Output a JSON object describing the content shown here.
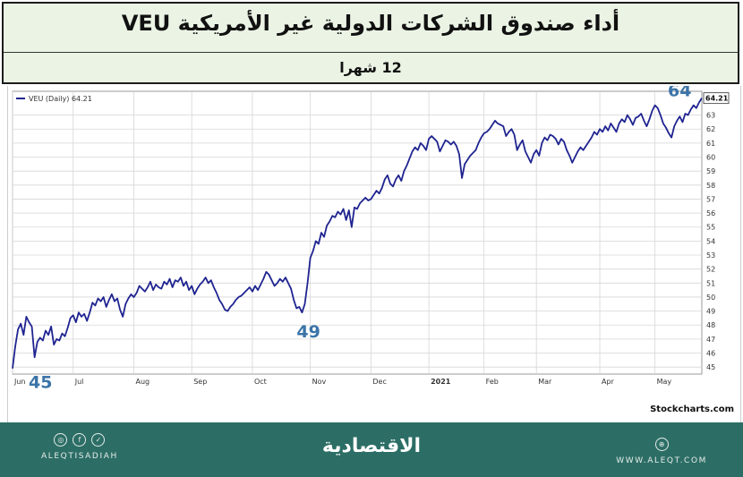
{
  "header": {
    "title": "أداء صندوق الشركات الدولية غير الأمريكية  VEU",
    "subtitle": "12 شهرا"
  },
  "chart_data": {
    "type": "line",
    "legend": "VEU (Daily) 64.21",
    "last_value_label": "64.21",
    "series": [
      {
        "values": [
          44.9,
          46.5,
          47.7,
          48.1,
          47.3,
          48.6,
          48.2,
          47.9,
          45.7,
          46.8,
          47.1,
          46.9,
          47.6,
          47.3,
          47.9,
          46.6,
          47.0,
          46.9,
          47.4,
          47.2,
          47.8,
          48.5,
          48.7,
          48.2,
          48.9,
          48.6,
          48.8,
          48.3,
          48.9,
          49.6,
          49.4,
          49.9,
          49.7,
          50.0,
          49.3,
          49.8,
          50.2,
          49.7,
          49.9,
          49.1,
          48.6,
          49.5,
          49.9,
          50.2,
          50.0,
          50.3,
          50.8,
          50.6,
          50.4,
          50.7,
          51.1,
          50.5,
          50.9,
          50.7,
          50.6,
          51.1,
          50.9,
          51.3,
          50.7,
          51.2,
          51.1,
          51.4,
          50.8,
          51.1,
          50.5,
          50.8,
          50.2,
          50.6,
          50.9,
          51.1,
          51.4,
          51.0,
          51.2,
          50.7,
          50.3,
          49.8,
          49.5,
          49.1,
          49.0,
          49.3,
          49.5,
          49.8,
          50.0,
          50.1,
          50.3,
          50.5,
          50.7,
          50.4,
          50.8,
          50.5,
          50.9,
          51.3,
          51.8,
          51.6,
          51.2,
          50.8,
          51.0,
          51.3,
          51.1,
          51.4,
          51.0,
          50.6,
          49.8,
          49.2,
          49.3,
          48.9,
          49.5,
          51.0,
          52.8,
          53.3,
          54.0,
          53.8,
          54.6,
          54.3,
          55.1,
          55.4,
          55.8,
          55.7,
          56.1,
          55.9,
          56.3,
          55.5,
          56.2,
          55.0,
          56.4,
          56.3,
          56.7,
          56.9,
          57.1,
          56.9,
          57.0,
          57.3,
          57.6,
          57.4,
          57.8,
          58.4,
          58.7,
          58.1,
          57.9,
          58.4,
          58.7,
          58.3,
          59.0,
          59.4,
          59.9,
          60.4,
          60.7,
          60.5,
          61.0,
          60.8,
          60.5,
          61.3,
          61.5,
          61.3,
          61.1,
          60.4,
          60.8,
          61.2,
          61.1,
          60.9,
          61.1,
          60.8,
          60.2,
          58.5,
          59.5,
          59.8,
          60.1,
          60.3,
          60.5,
          61.0,
          61.4,
          61.7,
          61.8,
          62.0,
          62.3,
          62.6,
          62.4,
          62.3,
          62.2,
          61.5,
          61.8,
          62.0,
          61.6,
          60.5,
          60.9,
          61.2,
          60.4,
          60.0,
          59.6,
          60.2,
          60.5,
          60.1,
          61.0,
          61.4,
          61.2,
          61.6,
          61.5,
          61.3,
          60.9,
          61.3,
          61.1,
          60.5,
          60.1,
          59.6,
          60.0,
          60.4,
          60.7,
          60.5,
          60.8,
          61.1,
          61.4,
          61.8,
          61.6,
          62.0,
          61.8,
          62.2,
          61.9,
          62.4,
          62.1,
          61.8,
          62.4,
          62.7,
          62.5,
          63.0,
          62.7,
          62.3,
          62.8,
          62.9,
          63.1,
          62.6,
          62.2,
          62.7,
          63.3,
          63.7,
          63.5,
          63.0,
          62.4,
          62.1,
          61.7,
          61.4,
          62.2,
          62.6,
          62.9,
          62.5,
          63.1,
          63.0,
          63.4,
          63.7,
          63.5,
          63.9,
          64.21
        ]
      }
    ],
    "x_tick_labels": [
      "Jun",
      "Jul",
      "Aug",
      "Sep",
      "Oct",
      "Nov",
      "Dec",
      "2021",
      "Feb",
      "Mar",
      "Apr",
      "May"
    ],
    "x_tick_index": [
      0,
      22,
      44,
      65,
      87,
      108,
      130,
      151,
      171,
      190,
      213,
      233
    ],
    "ylim": [
      44.5,
      64.7
    ],
    "yticks": [
      45,
      46,
      47,
      48,
      49,
      50,
      51,
      52,
      53,
      54,
      55,
      56,
      57,
      58,
      59,
      60,
      61,
      62,
      63
    ],
    "grid": true,
    "annotations": [
      "45",
      "49",
      "64"
    ],
    "annotation_color": "#3b74a8",
    "line_color": "#1f2490",
    "source": "Stockcharts.com"
  },
  "footer": {
    "social_handle": "ALEQTISADIAH",
    "brand": "الاقتصادية",
    "url": "WWW.ALEQT.COM",
    "social_icons": [
      "instagram-icon",
      "facebook-icon",
      "twitter-icon"
    ],
    "globe_icon": "globe-icon",
    "color": "#2c6e66"
  }
}
